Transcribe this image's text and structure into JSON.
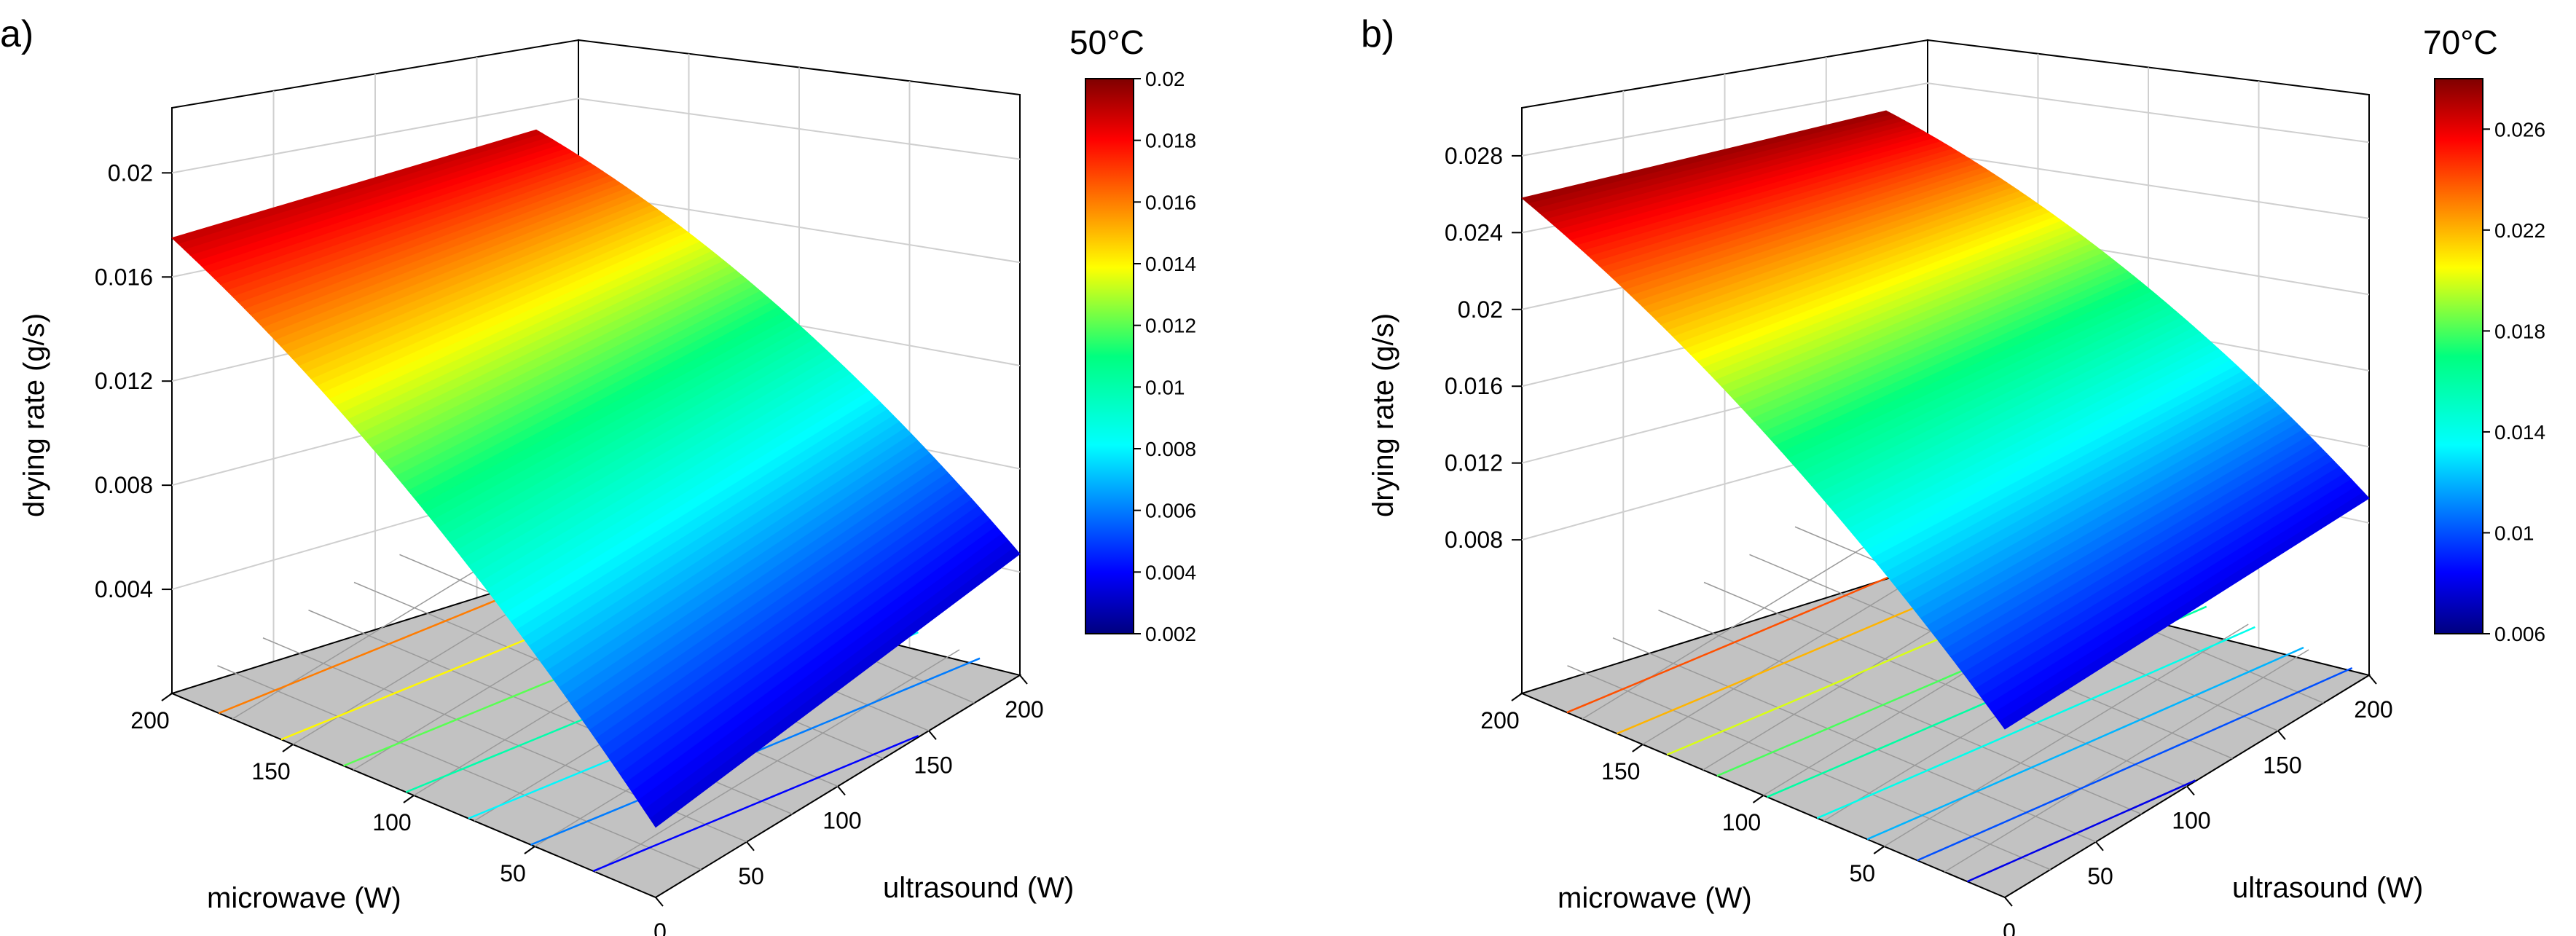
{
  "chart_data": [
    {
      "type": "surface3d",
      "panel_label": "a)",
      "title": "50°C",
      "xlabel": "microwave (W)",
      "ylabel": "ultrasound (W)",
      "zlabel": "drying rate (g/s)",
      "x_ticks": [
        "200",
        "150",
        "100",
        "50"
      ],
      "y_ticks": [
        "0",
        "50",
        "100",
        "150",
        "200"
      ],
      "z_ticks": [
        "0.004",
        "0.008",
        "0.012",
        "0.016",
        "0.02"
      ],
      "z_tick_values": [
        0.004,
        0.008,
        0.012,
        0.016,
        0.02
      ],
      "xlim": [
        0,
        200
      ],
      "ylim": [
        0,
        200
      ],
      "zlim": [
        0.0,
        0.0225
      ],
      "surface_corners": [
        {
          "microwave": 0,
          "ultrasound": 0,
          "rate": 0.002
        },
        {
          "microwave": 200,
          "ultrasound": 0,
          "rate": 0.0175
        },
        {
          "microwave": 200,
          "ultrasound": 200,
          "rate": 0.0204
        },
        {
          "microwave": 0,
          "ultrasound": 200,
          "rate": 0.0047
        }
      ],
      "colorbar": {
        "min": 0.002,
        "max": 0.02,
        "ticks": [
          "0.002",
          "0.004",
          "0.006",
          "0.008",
          "0.01",
          "0.012",
          "0.014",
          "0.016",
          "0.018",
          "0.02"
        ],
        "tick_values": [
          0.002,
          0.004,
          0.006,
          0.008,
          0.01,
          0.012,
          0.014,
          0.016,
          0.018,
          0.02
        ]
      },
      "contour_levels": [
        0.004,
        0.006,
        0.008,
        0.01,
        0.012,
        0.014,
        0.016
      ]
    },
    {
      "type": "surface3d",
      "panel_label": "b)",
      "title": "70°C",
      "xlabel": "microwave (W)",
      "ylabel": "ultrasound (W)",
      "zlabel": "drying rate (g/s)",
      "x_ticks": [
        "200",
        "150",
        "100",
        "50"
      ],
      "y_ticks": [
        "0",
        "50",
        "100",
        "150",
        "200"
      ],
      "z_ticks": [
        "0.008",
        "0.012",
        "0.016",
        "0.02",
        "0.024",
        "0.028"
      ],
      "z_tick_values": [
        0.008,
        0.012,
        0.016,
        0.02,
        0.024,
        0.028
      ],
      "xlim": [
        0,
        200
      ],
      "ylim": [
        0,
        200
      ],
      "zlim": [
        0.0,
        0.0305
      ],
      "surface_corners": [
        {
          "microwave": 0,
          "ultrasound": 0,
          "rate": 0.0065
        },
        {
          "microwave": 200,
          "ultrasound": 0,
          "rate": 0.0258
        },
        {
          "microwave": 200,
          "ultrasound": 200,
          "rate": 0.0292
        },
        {
          "microwave": 0,
          "ultrasound": 200,
          "rate": 0.0093
        }
      ],
      "colorbar": {
        "min": 0.006,
        "max": 0.028,
        "ticks": [
          "0.006",
          "0.01",
          "0.014",
          "0.018",
          "0.022",
          "0.026"
        ],
        "tick_values": [
          0.006,
          0.01,
          0.014,
          0.018,
          0.022,
          0.026
        ]
      },
      "contour_levels": [
        0.008,
        0.01,
        0.012,
        0.014,
        0.016,
        0.018,
        0.02,
        0.022,
        0.024
      ]
    }
  ]
}
